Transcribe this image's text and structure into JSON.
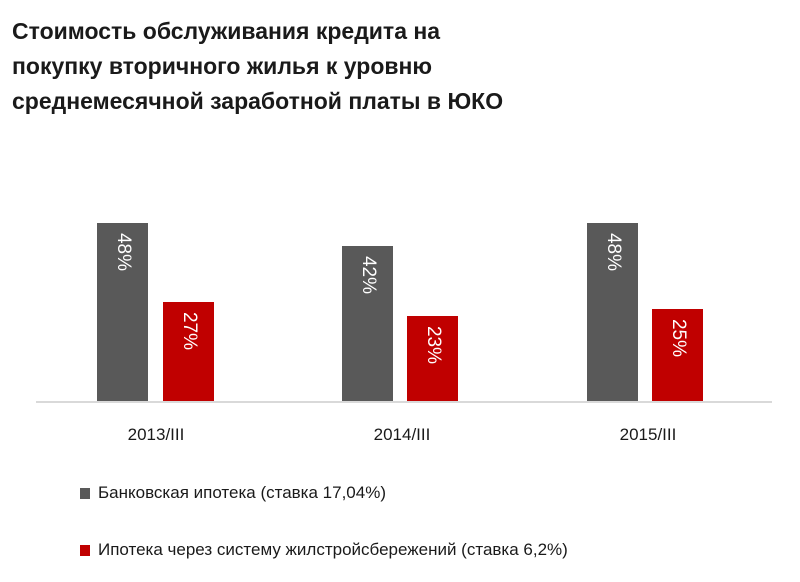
{
  "chart_data": {
    "type": "bar",
    "title": "Стоимость обслуживания кредита на покупку вторичного жилья к уровню среднемесячной заработной платы в ЮКО",
    "title_lines": [
      "Стоимость  обслуживания  кредита на",
      "покупку  вторичного  жилья к уровню",
      "среднемесячной  заработной  платы  в ЮКО"
    ],
    "categories": [
      "2013/III",
      "2014/III",
      "2015/III"
    ],
    "series": [
      {
        "name": "Банковская ипотека (ставка 17,04%)",
        "color": "#595959",
        "values": [
          48,
          42,
          48
        ],
        "labels": [
          "48%",
          "42%",
          "48%"
        ]
      },
      {
        "name": "Ипотека через систему жилстройсбережений (ставка 6,2%)",
        "color": "#c00000",
        "values": [
          27,
          23,
          25
        ],
        "labels": [
          "27%",
          "23%",
          "25%"
        ]
      }
    ],
    "xlabel": "",
    "ylabel": "",
    "ylim": [
      0,
      50
    ],
    "grid": false,
    "legend_position": "bottom",
    "data_labels": "inside, rotated 90°"
  }
}
